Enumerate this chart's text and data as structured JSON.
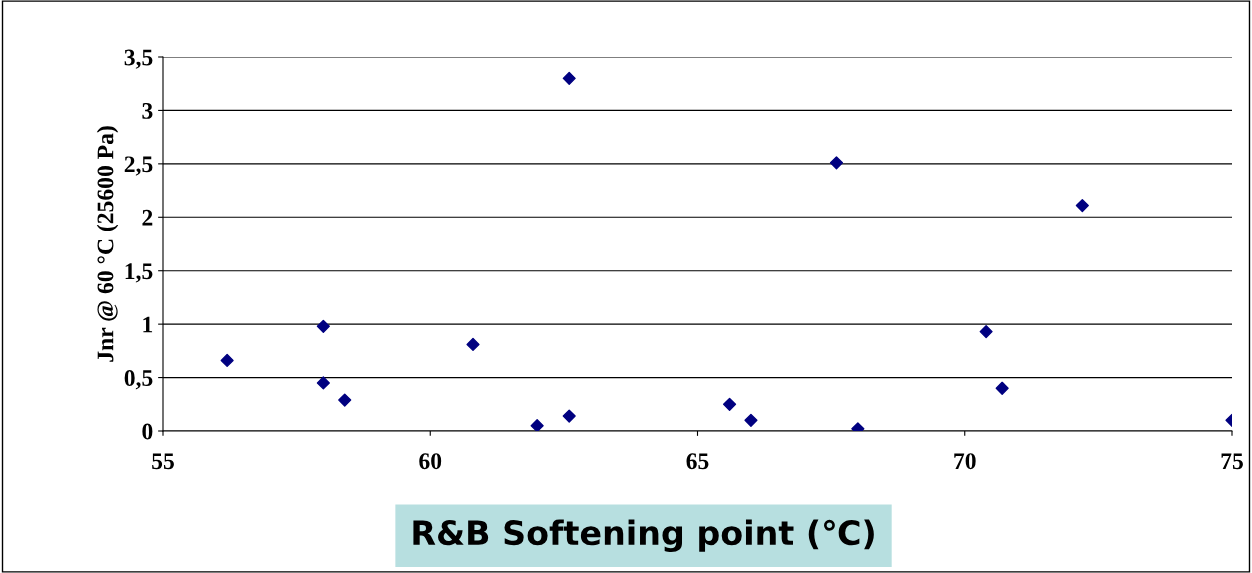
{
  "chart_data": {
    "type": "scatter",
    "xlabel": "R&B Softening point (℃)",
    "ylabel": "Jnr @ 60 °C (25600 Pa)",
    "x": [
      56.2,
      58,
      58,
      58.4,
      60.8,
      62,
      62.6,
      62.6,
      65.6,
      66,
      67.6,
      68,
      70.4,
      70.7,
      72.2,
      75
    ],
    "values": [
      0.66,
      0.98,
      0.45,
      0.29,
      0.81,
      0.05,
      3.3,
      0.14,
      0.25,
      0.1,
      2.51,
      0.02,
      0.93,
      0.4,
      2.11,
      0.1
    ],
    "color": "#000080",
    "marker": "diamond",
    "xlim": [
      55,
      75
    ],
    "xticks": [
      55,
      60,
      65,
      70,
      75
    ],
    "ylim": [
      0,
      3.5
    ],
    "yticks": [
      0,
      {
        "value": 0.5,
        "label": "0,5"
      },
      1,
      {
        "value": 1.5,
        "label": "1,5"
      },
      2,
      {
        "value": 2.5,
        "label": "2,5"
      },
      3,
      {
        "value": 3.5,
        "label": "3,5"
      }
    ],
    "grid": "y"
  }
}
